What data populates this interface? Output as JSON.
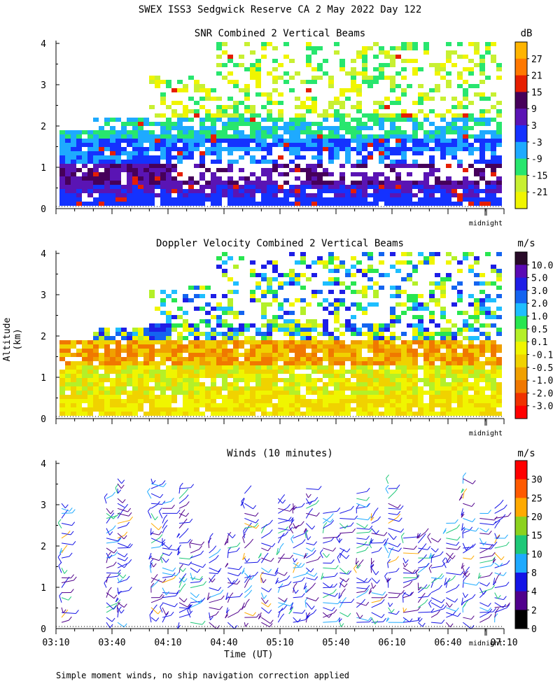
{
  "header": {
    "title": "SWEX ISS3 Sedgwick Reserve CA   2 May 2022 Day 122"
  },
  "ylabel": "Altitude (km)",
  "xlabel": "Time (UT)",
  "footnote": "Simple moment winds, no ship navigation correction applied",
  "midnight_label": "midnight",
  "chart_data": [
    {
      "type": "heatmap",
      "title": "SNR Combined 2 Vertical Beams",
      "unit": "dB",
      "yticks": [
        0,
        1,
        2,
        3,
        4
      ],
      "ylim": [
        0,
        4
      ],
      "colorbar": {
        "labels": [
          "27",
          "21",
          "15",
          "9",
          "3",
          "-3",
          "-9",
          "-15",
          "-21"
        ],
        "colors": [
          "#ffb400",
          "#ff7800",
          "#e61e00",
          "#46005a",
          "#5a14b4",
          "#1432ff",
          "#1eaaff",
          "#28e66e",
          "#c8f032",
          "#f0f500"
        ]
      },
      "layers": [
        {
          "alt_range": [
            0.0,
            0.25
          ],
          "value_dB": -3
        },
        {
          "alt_range": [
            0.25,
            0.5
          ],
          "value_dB": 3
        },
        {
          "alt_range": [
            0.5,
            1.0
          ],
          "value_dB": 9
        },
        {
          "alt_range": [
            1.0,
            1.6
          ],
          "value_dB": -9
        },
        {
          "alt_range": [
            1.6,
            2.2
          ],
          "value_dB": -15
        },
        {
          "alt_range": [
            2.2,
            4.0
          ],
          "value_dB": -21
        }
      ]
    },
    {
      "type": "heatmap",
      "title": "Doppler Velocity Combined 2 Vertical Beams",
      "unit": "m/s",
      "yticks": [
        0,
        1,
        2,
        3,
        4
      ],
      "ylim": [
        0,
        4
      ],
      "colorbar": {
        "labels": [
          "10.0",
          "5.0",
          "3.0",
          "2.0",
          "1.0",
          "0.5",
          "0.1",
          "-0.1",
          "-0.5",
          "-1.0",
          "-2.0",
          "-3.0"
        ],
        "colors": [
          "#280a28",
          "#5a0ab4",
          "#1e1ee6",
          "#1464f0",
          "#1ebeff",
          "#28e650",
          "#b4f028",
          "#f0f500",
          "#f0d200",
          "#f0a000",
          "#f07800",
          "#f03200",
          "#ff0000"
        ]
      },
      "layers": [
        {
          "alt_range": [
            0.0,
            0.5
          ],
          "value_ms": -0.1
        },
        {
          "alt_range": [
            0.5,
            1.2
          ],
          "value_ms": -0.5
        },
        {
          "alt_range": [
            1.2,
            1.8
          ],
          "value_ms": -1.0
        },
        {
          "alt_range": [
            1.8,
            2.5
          ],
          "value_ms": 1.0
        }
      ]
    },
    {
      "type": "scatter",
      "title": "Winds (10 minutes)",
      "unit": "m/s",
      "yticks": [
        0,
        1,
        2,
        3,
        4
      ],
      "ylim": [
        0,
        4
      ],
      "xticks": [
        "03:10",
        "03:40",
        "04:10",
        "04:40",
        "05:10",
        "05:40",
        "06:10",
        "06:40",
        "07:10"
      ],
      "colorbar": {
        "labels": [
          "30",
          "25",
          "20",
          "15",
          "10",
          "8",
          "4",
          "2",
          "0"
        ],
        "colors": [
          "#ff0000",
          "#ff5a00",
          "#ffaa00",
          "#8cd21e",
          "#1ec878",
          "#1eaaff",
          "#1414e6",
          "#50008c",
          "#000000"
        ]
      },
      "profiles_times": [
        "03:13",
        "03:37",
        "03:43",
        "04:01",
        "04:07",
        "04:16",
        "04:22",
        "04:32",
        "04:42",
        "04:51",
        "05:00",
        "05:09",
        "05:17",
        "05:24",
        "05:33",
        "05:42",
        "05:51",
        "05:59",
        "06:08",
        "06:16",
        "06:24",
        "06:31",
        "06:39",
        "06:48",
        "06:57",
        "07:05"
      ]
    }
  ]
}
